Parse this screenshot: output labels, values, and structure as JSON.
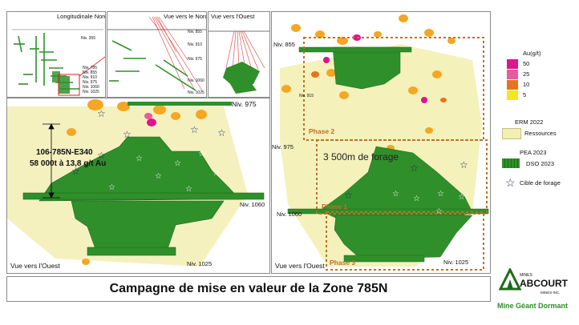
{
  "insets": {
    "longitudinal": {
      "title": "Longitudinale Nord",
      "levels": [
        "Niv. 355",
        "Niv. 785",
        "Niv. 855",
        "Niv. 910",
        "Niv. 975",
        "Niv. 1060",
        "Niv. 1025"
      ]
    },
    "north_view": {
      "title": "Vue vers le Nord",
      "levels": [
        "Niv. 855",
        "Niv. 910",
        "Niv. 975",
        "Niv. 1060",
        "Niv. 1025"
      ]
    },
    "west_view": {
      "title": "Vue vers l'Ouest"
    }
  },
  "left_panel": {
    "level_975": "Niv. 975",
    "level_1060": "Niv. 1060",
    "level_1025": "Niv. 1025",
    "caption": "Vue vers l'Ouest",
    "stope_id": "106-785N-E340",
    "tonnage": "58 000t à 13,8 g/t Au"
  },
  "right_panel": {
    "level_855": "Niv. 855",
    "level_915": "Niv. 915",
    "level_975": "Niv. 975",
    "level_1060": "Niv. 1060",
    "level_1025": "Niv. 1025",
    "phase2": "Phase 2",
    "phase1": "Phase 1",
    "phase3": "Phase 3",
    "drilling": "3 500m de forage",
    "caption": "Vue vers l'Ouest"
  },
  "legend": {
    "au_title": "Au(g/t)",
    "au_levels": [
      {
        "value": "50",
        "color": "#e0148c"
      },
      {
        "value": "25",
        "color": "#e85aa0"
      },
      {
        "value": "10",
        "color": "#e8731c"
      },
      {
        "value": "5",
        "color": "#f5e61e"
      }
    ],
    "erm_title": "ERM 2022",
    "erm_item": "Ressources",
    "pea_title": "PEA 2023",
    "pea_item": "DSO 2023",
    "target": "Cible de forage"
  },
  "footer": {
    "title": "Campagne de mise en valeur de la Zone 785N"
  },
  "logo": {
    "mines": "MINES",
    "brand": "ABCOURT",
    "sub": "MINES INC.",
    "mine": "Mine Géant Dormant"
  },
  "colors": {
    "green": "#2f8f2a",
    "dark_green": "#1f6b1c",
    "resource": "#f3efb4",
    "phase_box": "#b8732a",
    "navy": "#1e2a5a"
  }
}
